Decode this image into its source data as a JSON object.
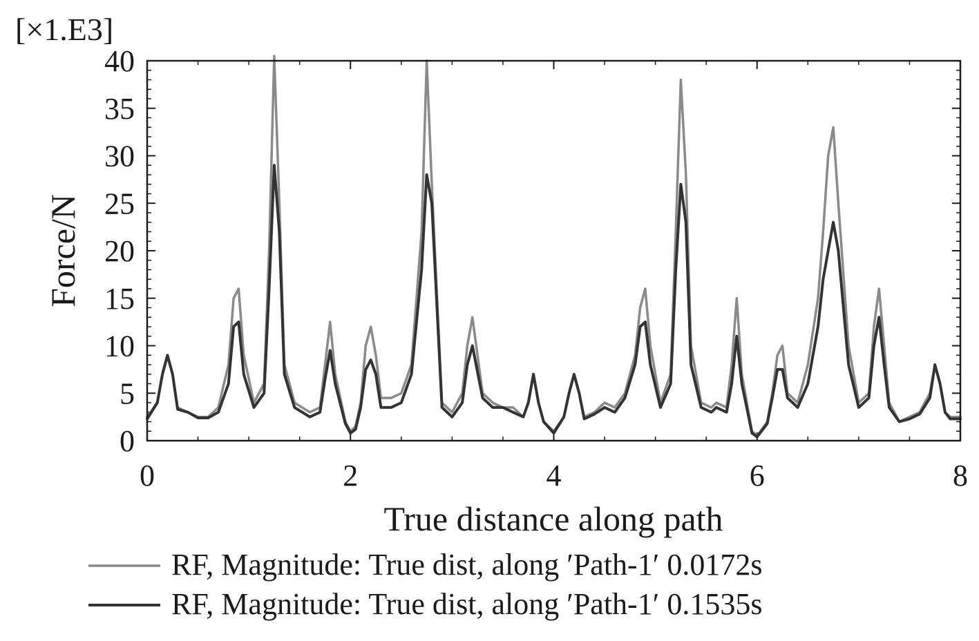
{
  "chart_data": {
    "type": "line",
    "title": "",
    "xlabel": "True distance along path",
    "ylabel": "Force/N",
    "y_multiplier": "[×1.E3]",
    "xlim": [
      0,
      8
    ],
    "ylim": [
      0,
      40
    ],
    "x_ticks": [
      "0",
      "2",
      "4",
      "6",
      "8"
    ],
    "y_ticks": [
      "0",
      "5",
      "10",
      "15",
      "20",
      "25",
      "30",
      "35",
      "40"
    ],
    "grid": false,
    "legend_position": "bottom",
    "colors": {
      "series_0": "#8a8a8a",
      "series_1": "#333333",
      "axis": "#1a1a1a"
    },
    "series": [
      {
        "name": "RF, Magnitude: True dist, along ′Path-1′ 0.0172s",
        "x": [
          0,
          0.1,
          0.15,
          0.2,
          0.25,
          0.3,
          0.4,
          0.5,
          0.6,
          0.7,
          0.8,
          0.85,
          0.9,
          0.95,
          1.05,
          1.15,
          1.2,
          1.25,
          1.3,
          1.35,
          1.45,
          1.6,
          1.7,
          1.75,
          1.8,
          1.85,
          1.95,
          2.0,
          2.05,
          2.1,
          2.15,
          2.2,
          2.25,
          2.3,
          2.4,
          2.5,
          2.6,
          2.7,
          2.75,
          2.8,
          2.9,
          3.0,
          3.1,
          3.15,
          3.2,
          3.3,
          3.4,
          3.5,
          3.6,
          3.7,
          3.75,
          3.8,
          3.85,
          3.9,
          4.0,
          4.1,
          4.15,
          4.2,
          4.25,
          4.3,
          4.4,
          4.5,
          4.6,
          4.7,
          4.8,
          4.85,
          4.9,
          4.95,
          5.05,
          5.15,
          5.2,
          5.25,
          5.3,
          5.35,
          5.45,
          5.55,
          5.6,
          5.7,
          5.75,
          5.8,
          5.85,
          5.95,
          6.0,
          6.1,
          6.15,
          6.2,
          6.25,
          6.3,
          6.4,
          6.5,
          6.6,
          6.65,
          6.7,
          6.75,
          6.8,
          6.9,
          7.0,
          7.1,
          7.15,
          7.2,
          7.25,
          7.3,
          7.4,
          7.5,
          7.6,
          7.7,
          7.75,
          7.8,
          7.85,
          7.9,
          8.0
        ],
        "y": [
          2.5,
          4,
          7,
          9,
          7,
          3.5,
          3,
          2.5,
          2.5,
          3.5,
          8,
          15,
          16,
          9,
          4,
          6,
          20,
          41,
          25,
          8,
          4,
          3,
          3.5,
          8,
          12.5,
          7,
          2,
          1,
          1.5,
          4,
          10,
          12,
          9,
          4.5,
          4.5,
          5,
          8,
          22,
          40,
          27,
          4,
          3,
          5,
          10,
          13,
          5,
          4,
          3.5,
          3.5,
          2.5,
          4,
          7,
          4,
          2,
          1,
          2.5,
          5,
          7,
          5,
          2.5,
          3,
          4,
          3.5,
          5,
          9,
          14,
          16,
          10,
          4,
          7,
          22,
          38,
          28,
          10,
          4,
          3.5,
          4,
          3.5,
          8,
          15,
          7,
          1,
          0.5,
          2,
          5,
          9,
          10,
          5,
          4,
          8,
          15,
          22,
          30,
          33,
          25,
          10,
          4,
          5,
          12,
          16,
          10,
          4,
          2,
          2.5,
          3,
          5,
          8,
          6,
          3,
          2.5,
          2.5
        ]
      },
      {
        "name": "RF, Magnitude: True dist, along ′Path-1′ 0.1535s",
        "x": [
          0,
          0.1,
          0.15,
          0.2,
          0.25,
          0.3,
          0.4,
          0.5,
          0.6,
          0.7,
          0.8,
          0.85,
          0.9,
          0.95,
          1.05,
          1.15,
          1.2,
          1.25,
          1.3,
          1.35,
          1.45,
          1.6,
          1.7,
          1.75,
          1.8,
          1.85,
          1.95,
          2.0,
          2.05,
          2.1,
          2.15,
          2.2,
          2.25,
          2.3,
          2.4,
          2.5,
          2.6,
          2.7,
          2.75,
          2.8,
          2.9,
          3.0,
          3.1,
          3.15,
          3.2,
          3.3,
          3.4,
          3.5,
          3.6,
          3.7,
          3.75,
          3.8,
          3.85,
          3.9,
          4.0,
          4.1,
          4.15,
          4.2,
          4.25,
          4.3,
          4.4,
          4.5,
          4.6,
          4.7,
          4.8,
          4.85,
          4.9,
          4.95,
          5.05,
          5.15,
          5.2,
          5.25,
          5.3,
          5.35,
          5.45,
          5.55,
          5.6,
          5.7,
          5.75,
          5.8,
          5.85,
          5.95,
          6.0,
          6.1,
          6.15,
          6.2,
          6.25,
          6.3,
          6.4,
          6.5,
          6.6,
          6.65,
          6.7,
          6.75,
          6.8,
          6.9,
          7.0,
          7.1,
          7.15,
          7.2,
          7.25,
          7.3,
          7.4,
          7.5,
          7.6,
          7.7,
          7.75,
          7.8,
          7.85,
          7.9,
          8.0
        ],
        "y": [
          2.3,
          4,
          7,
          9,
          7,
          3.3,
          3,
          2.4,
          2.4,
          3,
          6,
          12,
          12.5,
          7,
          3.5,
          5,
          16,
          29,
          22,
          7,
          3.5,
          2.5,
          3,
          6.5,
          9.5,
          6,
          1.8,
          0.8,
          1.2,
          3.5,
          7.5,
          8.5,
          7,
          3.5,
          3.5,
          4,
          7,
          18,
          28,
          25,
          3.5,
          2.5,
          4,
          8,
          10,
          4.5,
          3.5,
          3.5,
          3,
          2.5,
          4,
          7,
          4,
          2,
          0.8,
          2.5,
          5,
          7,
          5,
          2.3,
          2.8,
          3.5,
          3,
          4.5,
          8,
          12,
          12.5,
          8,
          3.5,
          6,
          18,
          27,
          23,
          8,
          3.5,
          3,
          3.5,
          3,
          6,
          11,
          6,
          0.8,
          0.4,
          1.8,
          4.5,
          7.5,
          7.5,
          4.5,
          3.5,
          6,
          12,
          17,
          20,
          23,
          20,
          8,
          3.5,
          4.5,
          10,
          13,
          8,
          3.5,
          2,
          2.3,
          2.8,
          4.5,
          8,
          6,
          3,
          2.3,
          2.3
        ]
      }
    ]
  }
}
